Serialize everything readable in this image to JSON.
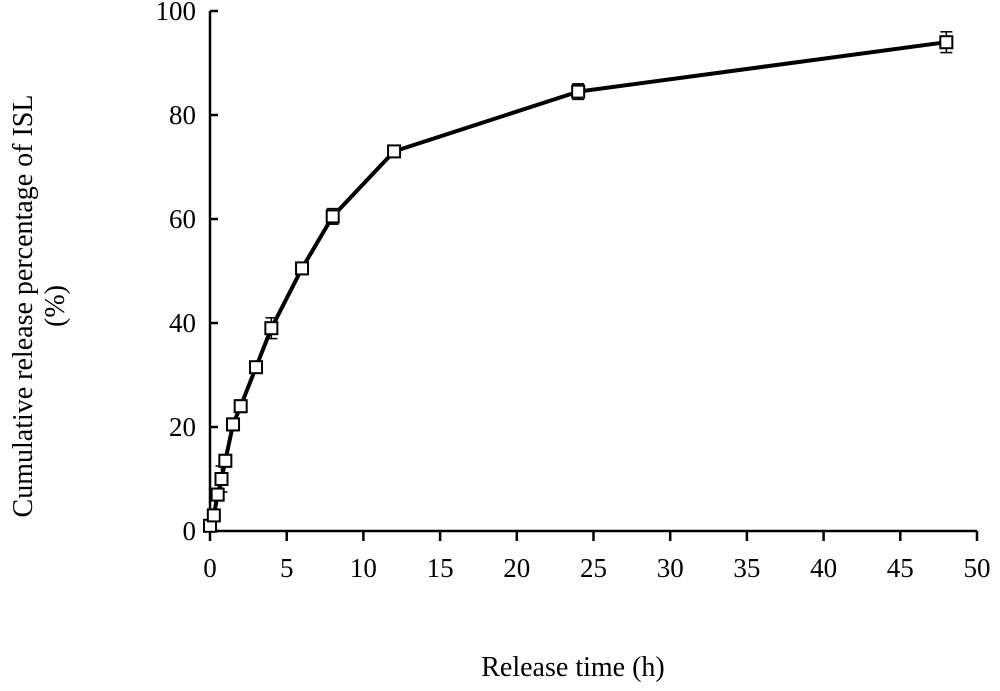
{
  "chart_data": {
    "type": "line",
    "xlabel": "Release time (h)",
    "ylabel": [
      "Cumulative release percentage of ISL",
      "(%)"
    ],
    "xlim": [
      0,
      50
    ],
    "ylim": [
      0,
      100
    ],
    "x_ticks": [
      0,
      5,
      10,
      15,
      20,
      25,
      30,
      35,
      40,
      45,
      50
    ],
    "y_ticks": [
      0,
      20,
      40,
      60,
      80,
      100
    ],
    "grid": false,
    "legend": "none",
    "marker": "open-square",
    "line_color": "#000000",
    "series": [
      {
        "x": [
          0,
          0.25,
          0.5,
          0.75,
          1,
          1.5,
          2,
          3,
          4,
          6,
          8,
          12,
          24,
          48
        ],
        "y": [
          1,
          3,
          7,
          10,
          13.5,
          20.5,
          24,
          31.5,
          39,
          50.5,
          60.5,
          73,
          84.5,
          94
        ],
        "error": [
          0.5,
          0.8,
          1.2,
          2.5,
          1.2,
          1.2,
          1.2,
          1,
          2,
          0.8,
          1.5,
          1,
          1.5,
          2
        ]
      }
    ]
  }
}
